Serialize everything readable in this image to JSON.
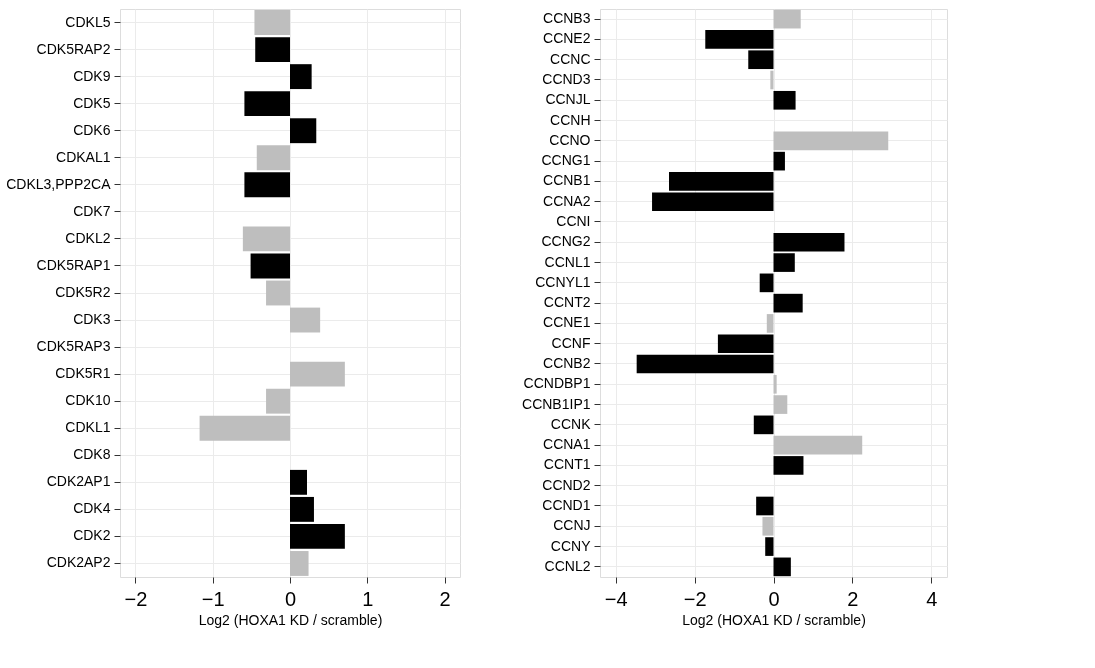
{
  "chart_data": [
    {
      "type": "bar",
      "orientation": "horizontal",
      "xlabel": "Log2 (HOXA1 KD / scramble)",
      "grid": true,
      "categories": [
        "CDKL5",
        "CDK5RAP2",
        "CDK9",
        "CDK5",
        "CDK6",
        "CDKAL1",
        "CDKL3,PPP2CA",
        "CDK7",
        "CDKL2",
        "CDK5RAP1",
        "CDK5R2",
        "CDK3",
        "CDK5RAP3",
        "CDK5R1",
        "CDK10",
        "CDKL1",
        "CDK8",
        "CDK2AP1",
        "CDK4",
        "CDK2",
        "CDK2AP2"
      ],
      "values": [
        -0.46,
        -0.45,
        0.28,
        -0.59,
        0.34,
        -0.43,
        -0.59,
        null,
        -0.61,
        -0.51,
        -0.31,
        0.39,
        null,
        0.71,
        -0.31,
        -1.17,
        0.0,
        0.22,
        0.31,
        0.71,
        0.24
      ],
      "colors": [
        "#bebebe",
        "#000000",
        "#000000",
        "#000000",
        "#000000",
        "#bebebe",
        "#000000",
        "#bebebe",
        "#bebebe",
        "#000000",
        "#bebebe",
        "#bebebe",
        "#bebebe",
        "#bebebe",
        "#bebebe",
        "#bebebe",
        "#bebebe",
        "#000000",
        "#000000",
        "#000000",
        "#bebebe"
      ],
      "xlim": [
        -2.2,
        2.2
      ],
      "xticks": [
        {
          "value": -2,
          "label": "−2"
        },
        {
          "value": -1,
          "label": "−1"
        },
        0,
        1,
        2
      ]
    },
    {
      "type": "bar",
      "orientation": "horizontal",
      "xlabel": "Log2 (HOXA1 KD / scramble)",
      "grid": true,
      "categories": [
        "CCNB3",
        "CCNE2",
        "CCNC",
        "CCND3",
        "CCNJL",
        "CCNH",
        "CCNO",
        "CCNG1",
        "CCNB1",
        "CCNA2",
        "CCNI",
        "CCNG2",
        "CCNL1",
        "CCNYL1",
        "CCNT2",
        "CCNE1",
        "CCNF",
        "CCNB2",
        "CCNDBP1",
        "CCNB1IP1",
        "CCNK",
        "CCNA1",
        "CCNT1",
        "CCND2",
        "CCND1",
        "CCNJ",
        "CCNY",
        "CCNL2"
      ],
      "values": [
        0.69,
        -1.73,
        -0.64,
        -0.08,
        0.56,
        null,
        2.91,
        0.29,
        -2.65,
        -3.08,
        null,
        1.8,
        0.54,
        -0.35,
        0.74,
        -0.17,
        -1.41,
        -3.47,
        0.08,
        0.35,
        -0.5,
        2.25,
        0.76,
        null,
        -0.44,
        -0.28,
        -0.21,
        0.44
      ],
      "colors": [
        "#bebebe",
        "#000000",
        "#000000",
        "#bebebe",
        "#000000",
        "#bebebe",
        "#bebebe",
        "#000000",
        "#000000",
        "#000000",
        "#bebebe",
        "#000000",
        "#000000",
        "#000000",
        "#000000",
        "#bebebe",
        "#000000",
        "#000000",
        "#bebebe",
        "#bebebe",
        "#000000",
        "#bebebe",
        "#000000",
        "#bebebe",
        "#000000",
        "#bebebe",
        "#000000",
        "#000000"
      ],
      "xlim": [
        -4.4,
        4.4
      ],
      "xticks": [
        {
          "value": -4,
          "label": "−4"
        },
        {
          "value": -2,
          "label": "−2"
        },
        0,
        2,
        4
      ]
    }
  ]
}
